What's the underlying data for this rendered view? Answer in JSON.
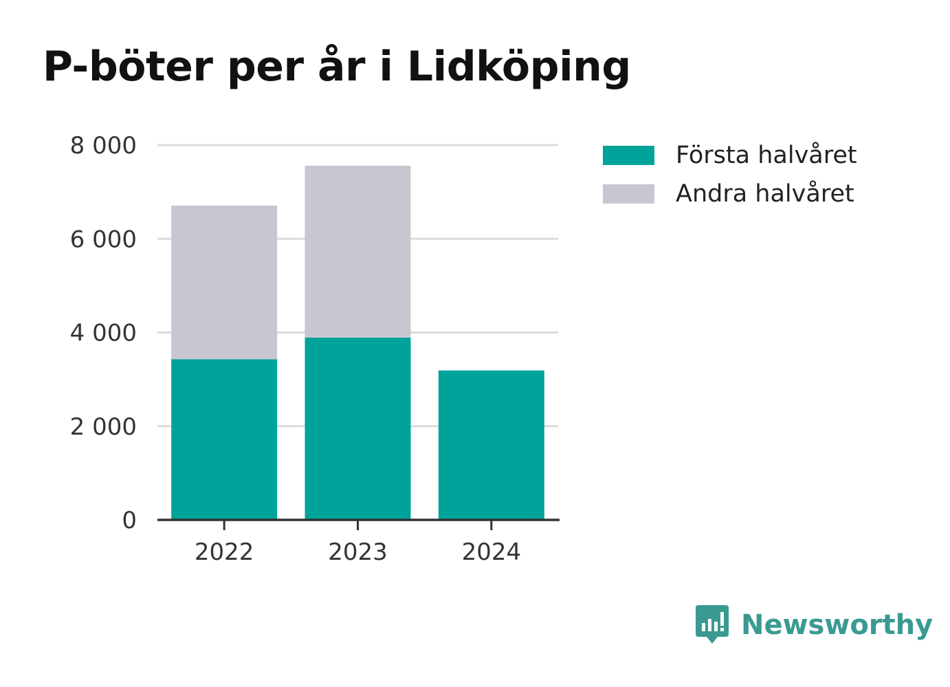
{
  "chart_data": {
    "type": "bar",
    "stacked": true,
    "title": "P-böter per år i Lidköping",
    "xlabel": "",
    "ylabel": "",
    "categories": [
      "2022",
      "2023",
      "2024"
    ],
    "series": [
      {
        "name": "Första halvåret",
        "color": "#00a39a",
        "values": [
          3430,
          3890,
          3190
        ]
      },
      {
        "name": "Andra halvåret",
        "color": "#c8c7d1",
        "values": [
          3280,
          3670,
          null
        ]
      }
    ],
    "ylim": [
      0,
      8000
    ],
    "yticks": [
      0,
      2000,
      4000,
      6000,
      8000
    ],
    "ytick_labels": [
      "0",
      "2 000",
      "4 000",
      "6 000",
      "8 000"
    ],
    "grid": true,
    "legend_position": "right"
  },
  "branding": {
    "logo_text": "Newsworthy",
    "logo_icon": "chart-bubble-icon",
    "color": "#3a9a92"
  }
}
